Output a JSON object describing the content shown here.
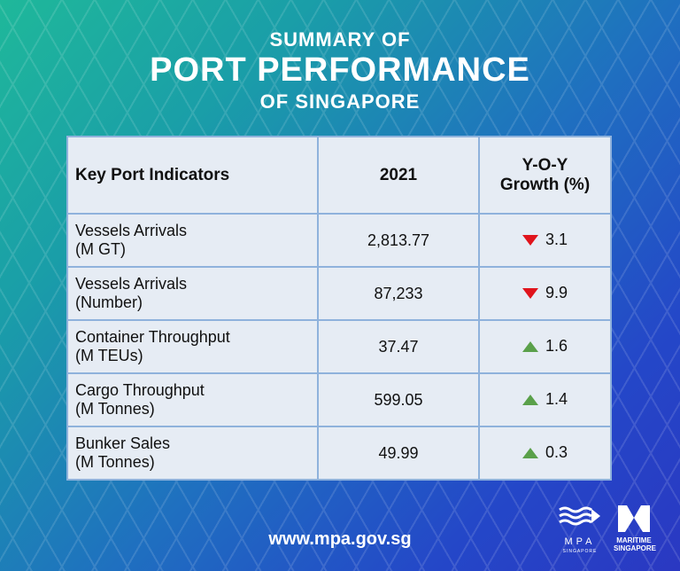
{
  "title": {
    "line1": "SUMMARY OF",
    "line2": "PORT PERFORMANCE",
    "line3": "OF SINGAPORE"
  },
  "table": {
    "headers": [
      "Key Port Indicators",
      "2021",
      "Y-O-Y Growth (%)"
    ],
    "rows": [
      {
        "indicator": "Vessels Arrivals",
        "unit": "(M GT)",
        "value": "2,813.77",
        "growth": "3.1",
        "direction": "down"
      },
      {
        "indicator": "Vessels Arrivals",
        "unit": "(Number)",
        "value": "87,233",
        "growth": "9.9",
        "direction": "down"
      },
      {
        "indicator": "Container Throughput",
        "unit": "(M TEUs)",
        "value": "37.47",
        "growth": "1.6",
        "direction": "up"
      },
      {
        "indicator": "Cargo Throughput",
        "unit": "(M Tonnes)",
        "value": "599.05",
        "growth": "1.4",
        "direction": "up"
      },
      {
        "indicator": "Bunker Sales",
        "unit": "(M Tonnes)",
        "value": "49.99",
        "growth": "0.3",
        "direction": "up"
      }
    ]
  },
  "colors": {
    "down": "#e0141c",
    "up": "#5aa04a"
  },
  "footer": {
    "url": "www.mpa.gov.sg",
    "logo1": "MPA SINGAPORE",
    "logo2": "MARITIME SINGAPORE"
  }
}
